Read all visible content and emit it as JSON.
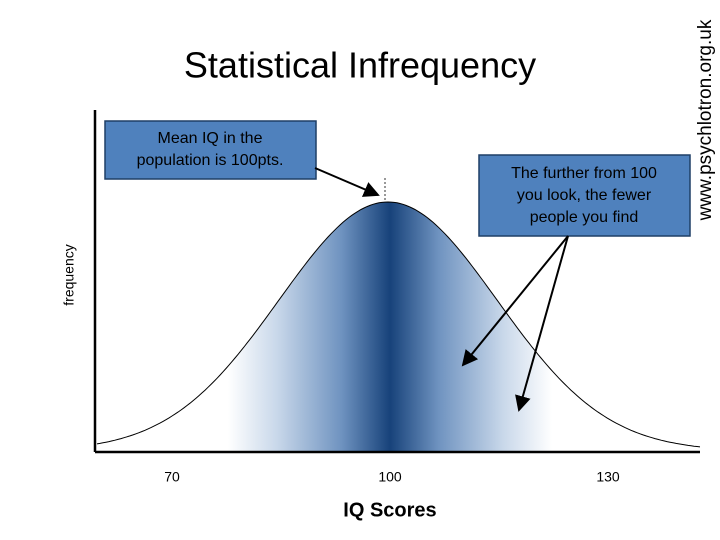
{
  "title": "Statistical Infrequency",
  "watermark": "www.psychlotron.org.uk",
  "y_axis_label": "frequency",
  "x_axis_label": "IQ Scores",
  "x_tick_labels": [
    "70",
    "100",
    "130"
  ],
  "callouts": [
    {
      "lines": [
        "Mean IQ in the",
        "population is 100pts."
      ]
    },
    {
      "lines": [
        "The further from 100",
        "you look, the fewer",
        "people you find"
      ]
    }
  ]
}
